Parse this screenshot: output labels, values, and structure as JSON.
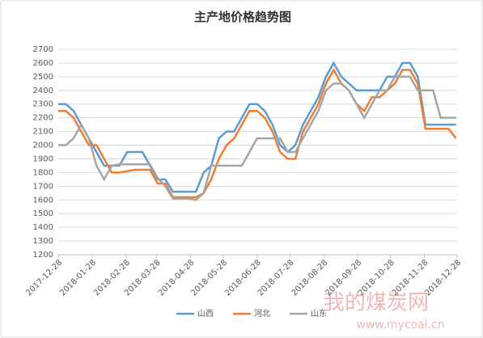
{
  "chart_data": {
    "type": "line",
    "title": "主产地价格趋势图",
    "x": [
      "2017-12-28",
      "2018-01-04",
      "2018-01-11",
      "2018-01-18",
      "2018-01-25",
      "2018-02-01",
      "2018-02-08",
      "2018-02-15",
      "2018-02-22",
      "2018-03-01",
      "2018-03-08",
      "2018-03-15",
      "2018-03-22",
      "2018-03-29",
      "2018-04-05",
      "2018-04-12",
      "2018-04-19",
      "2018-04-26",
      "2018-05-03",
      "2018-05-10",
      "2018-05-17",
      "2018-05-24",
      "2018-05-31",
      "2018-06-07",
      "2018-06-14",
      "2018-06-21",
      "2018-06-28",
      "2018-07-05",
      "2018-07-12",
      "2018-07-19",
      "2018-07-26",
      "2018-08-02",
      "2018-08-09",
      "2018-08-16",
      "2018-08-23",
      "2018-08-30",
      "2018-09-06",
      "2018-09-13",
      "2018-09-20",
      "2018-09-27",
      "2018-10-04",
      "2018-10-11",
      "2018-10-18",
      "2018-10-25",
      "2018-11-01",
      "2018-11-08",
      "2018-11-15",
      "2018-11-22",
      "2018-11-29",
      "2018-12-06",
      "2018-12-13",
      "2018-12-20",
      "2018-12-27"
    ],
    "series": [
      {
        "name": "山西",
        "color": "#5b9bd5",
        "values": [
          2300,
          2300,
          2250,
          2150,
          2050,
          1950,
          1850,
          1850,
          1850,
          1950,
          1950,
          1950,
          1850,
          1750,
          1750,
          1660,
          1660,
          1660,
          1660,
          1800,
          1850,
          2050,
          2100,
          2100,
          2200,
          2300,
          2300,
          2250,
          2150,
          2000,
          1950,
          2000,
          2150,
          2250,
          2350,
          2500,
          2600,
          2500,
          2450,
          2400,
          2400,
          2400,
          2400,
          2500,
          2500,
          2600,
          2600,
          2500,
          2150,
          2150,
          2150,
          2150,
          2150
        ]
      },
      {
        "name": "河北",
        "color": "#ed7d31",
        "values": [
          2250,
          2250,
          2200,
          2100,
          2000,
          2000,
          1900,
          1800,
          1800,
          1810,
          1820,
          1820,
          1820,
          1720,
          1720,
          1620,
          1620,
          1620,
          1620,
          1650,
          1750,
          1900,
          2000,
          2050,
          2150,
          2250,
          2250,
          2200,
          2100,
          1950,
          1900,
          1900,
          2100,
          2200,
          2300,
          2450,
          2550,
          2450,
          2400,
          2300,
          2250,
          2350,
          2350,
          2400,
          2450,
          2550,
          2550,
          2450,
          2120,
          2120,
          2120,
          2120,
          2050
        ]
      },
      {
        "name": "山东",
        "color": "#a5a5a5",
        "values": [
          2000,
          2000,
          2050,
          2150,
          2050,
          1850,
          1750,
          1850,
          1860,
          1860,
          1860,
          1860,
          1860,
          1760,
          1700,
          1610,
          1610,
          1610,
          1600,
          1650,
          1850,
          1850,
          1850,
          1850,
          1850,
          1950,
          2050,
          2050,
          2050,
          2050,
          1950,
          1950,
          2050,
          2150,
          2250,
          2400,
          2450,
          2450,
          2400,
          2300,
          2200,
          2300,
          2400,
          2400,
          2500,
          2500,
          2500,
          2400,
          2400,
          2400,
          2200,
          2200,
          2200
        ]
      }
    ],
    "xlim": [
      "2017-12-28",
      "2018-12-28"
    ],
    "xticks": [
      "2017-12-28",
      "2018-01-28",
      "2018-02-28",
      "2018-03-28",
      "2018-04-28",
      "2018-05-28",
      "2018-06-28",
      "2018-07-28",
      "2018-08-28",
      "2018-09-28",
      "2018-10-28",
      "2018-11-28",
      "2018-12-28"
    ],
    "ylim": [
      1200,
      2700
    ],
    "yticks": [
      1200,
      1300,
      1400,
      1500,
      1600,
      1700,
      1800,
      1900,
      2000,
      2100,
      2200,
      2300,
      2400,
      2500,
      2600,
      2700
    ],
    "grid": true,
    "legend": "bottom",
    "watermark": {
      "title": "我的煤炭网",
      "url": "www.mycoal.cn"
    }
  }
}
